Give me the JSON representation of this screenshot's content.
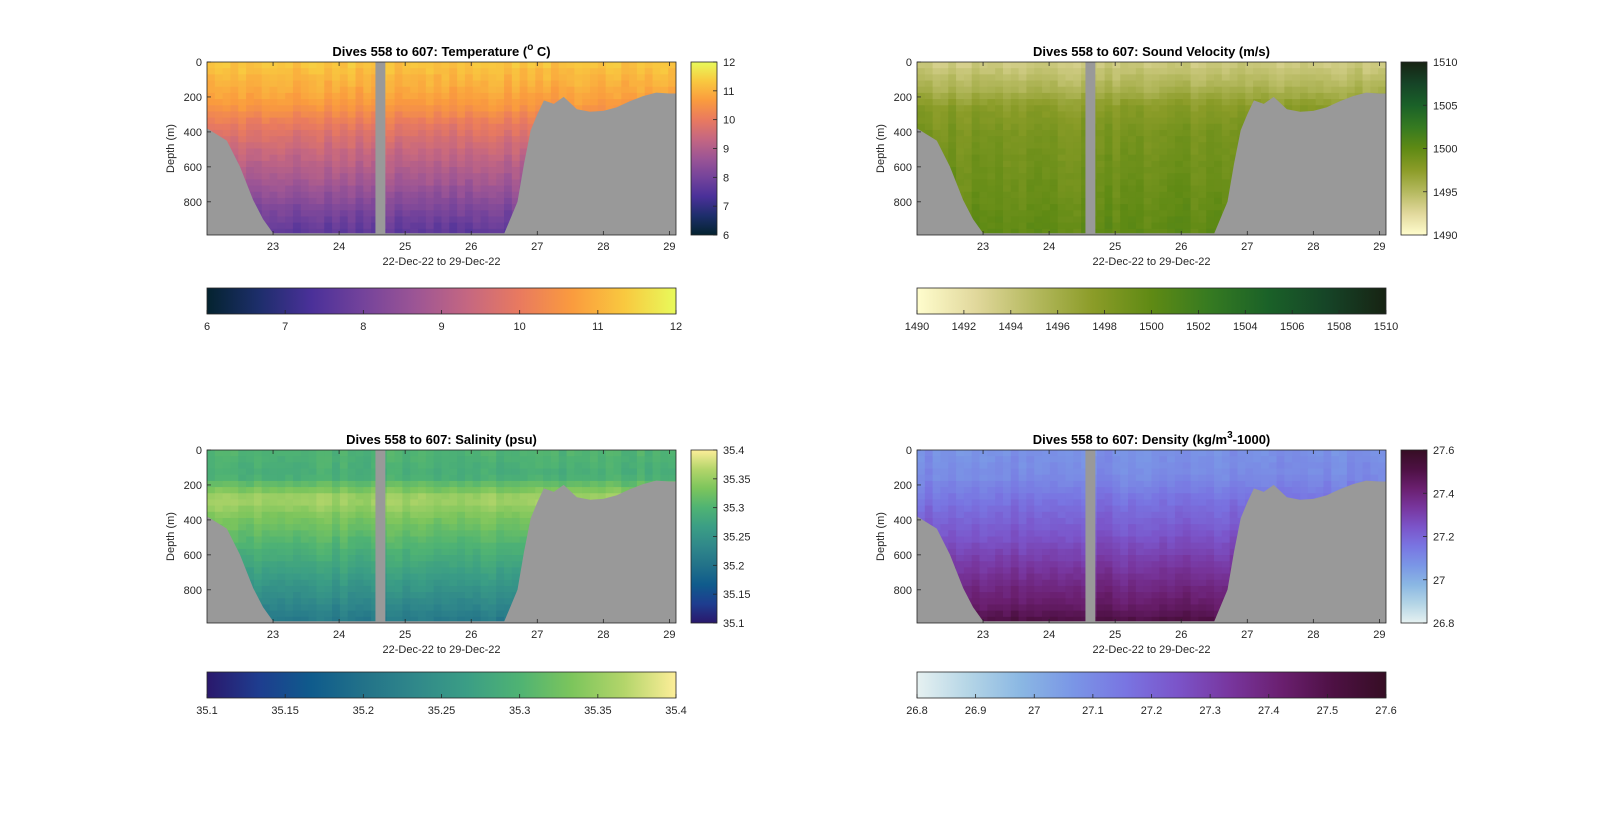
{
  "chart_data": [
    {
      "type": "heatmap",
      "title": "Dives 558 to 607: Temperature (",
      "title_sup": "o",
      "title_end": " C)",
      "xlabel": "22-Dec-22 to 29-Dec-22",
      "ylabel": "Depth (m)",
      "x_ticks": [
        23,
        24,
        25,
        26,
        27,
        28,
        29
      ],
      "y_ticks": [
        0,
        200,
        400,
        600,
        800
      ],
      "xlim": [
        22,
        29.1
      ],
      "ylim": [
        0,
        990
      ],
      "colormap": "thermal",
      "clim": [
        6,
        12
      ],
      "colorbar_ticks": [
        6,
        7,
        8,
        9,
        10,
        11,
        12
      ],
      "horizontal_colorbar_ticks": [
        6,
        7,
        8,
        9,
        10,
        11,
        12
      ],
      "profile": {
        "depth": [
          0,
          150,
          250,
          350,
          500,
          700,
          900,
          990
        ],
        "values": [
          11.3,
          10.9,
          10.6,
          10.0,
          9.4,
          8.7,
          7.9,
          7.6
        ]
      },
      "no_data_color": "#999999"
    },
    {
      "type": "heatmap",
      "title": "Dives 558 to 607: Sound Velocity (m/s)",
      "xlabel": "22-Dec-22 to 29-Dec-22",
      "ylabel": "Depth (m)",
      "x_ticks": [
        23,
        24,
        25,
        26,
        27,
        28,
        29
      ],
      "y_ticks": [
        0,
        200,
        400,
        600,
        800
      ],
      "xlim": [
        22,
        29.1
      ],
      "ylim": [
        0,
        990
      ],
      "colormap": "speed",
      "clim": [
        1490,
        1510
      ],
      "colorbar_ticks": [
        1490,
        1495,
        1500,
        1505,
        1510
      ],
      "horizontal_colorbar_ticks": [
        1490,
        1492,
        1494,
        1496,
        1498,
        1500,
        1502,
        1504,
        1506,
        1508,
        1510
      ],
      "profile": {
        "depth": [
          0,
          150,
          250,
          400,
          600,
          800,
          990
        ],
        "values": [
          1493.5,
          1495.5,
          1497.5,
          1498.5,
          1499.0,
          1499.5,
          1500.0
        ]
      },
      "no_data_color": "#999999"
    },
    {
      "type": "heatmap",
      "title": "Dives 558 to 607: Salinity (psu)",
      "xlabel": "22-Dec-22 to 29-Dec-22",
      "ylabel": "Depth (m)",
      "x_ticks": [
        23,
        24,
        25,
        26,
        27,
        28,
        29
      ],
      "y_ticks": [
        0,
        200,
        400,
        600,
        800
      ],
      "xlim": [
        22,
        29.1
      ],
      "ylim": [
        0,
        990
      ],
      "colormap": "haline",
      "clim": [
        35.1,
        35.4
      ],
      "colorbar_ticks": [
        35.1,
        35.15,
        35.2,
        35.25,
        35.3,
        35.35,
        35.4
      ],
      "horizontal_colorbar_ticks": [
        35.1,
        35.15,
        35.2,
        35.25,
        35.3,
        35.35,
        35.4
      ],
      "profile": {
        "depth": [
          0,
          150,
          280,
          400,
          600,
          800,
          990
        ],
        "values": [
          35.3,
          35.29,
          35.36,
          35.33,
          35.29,
          35.25,
          35.21
        ]
      },
      "no_data_color": "#999999"
    },
    {
      "type": "heatmap",
      "title": "Dives 558 to 607: Density (kg/m",
      "title_sup": "3",
      "title_end": "-1000)",
      "xlabel": "22-Dec-22 to 29-Dec-22",
      "ylabel": "Depth (m)",
      "x_ticks": [
        23,
        24,
        25,
        26,
        27,
        28,
        29
      ],
      "y_ticks": [
        0,
        200,
        400,
        600,
        800
      ],
      "xlim": [
        22,
        29.1
      ],
      "ylim": [
        0,
        990
      ],
      "colormap": "dense",
      "clim": [
        26.8,
        27.6
      ],
      "colorbar_ticks": [
        26.8,
        27,
        27.2,
        27.4,
        27.6
      ],
      "horizontal_colorbar_ticks": [
        26.8,
        26.9,
        27,
        27.1,
        27.2,
        27.3,
        27.4,
        27.5,
        27.6
      ],
      "profile": {
        "depth": [
          0,
          150,
          300,
          500,
          700,
          900,
          990
        ],
        "values": [
          27.08,
          27.1,
          27.17,
          27.25,
          27.35,
          27.45,
          27.52
        ]
      },
      "no_data_color": "#999999"
    }
  ],
  "bathymetry": {
    "x": [
      22.0,
      22.3,
      22.5,
      22.7,
      22.85,
      23.0,
      23.5,
      24.0,
      24.5,
      25.0,
      25.5,
      26.0,
      26.5,
      26.7,
      26.8,
      26.9,
      27.0,
      27.1,
      27.25,
      27.4,
      27.6,
      27.8,
      28.0,
      28.2,
      28.4,
      28.6,
      28.8,
      29.0,
      29.1
    ],
    "depth": [
      380,
      450,
      600,
      790,
      900,
      980,
      980,
      980,
      980,
      980,
      980,
      980,
      980,
      800,
      580,
      390,
      300,
      220,
      240,
      200,
      270,
      285,
      280,
      260,
      225,
      195,
      175,
      180,
      180
    ]
  },
  "gap": {
    "x": [
      24.55,
      24.7
    ]
  },
  "colormaps": {
    "thermal": [
      "#04232f",
      "#1d2e6b",
      "#4a3099",
      "#74439b",
      "#9c5595",
      "#c56781",
      "#e97a5f",
      "#fa9b3e",
      "#f9c83f",
      "#e8fa5b"
    ],
    "speed": [
      "#fffdcd",
      "#e1d89c",
      "#b5b95f",
      "#8b9c28",
      "#5f8a14",
      "#357a21",
      "#1a6128",
      "#164427",
      "#172313"
    ],
    "haline": [
      "#2a186c",
      "#1e3d8f",
      "#0f5b8c",
      "#227289",
      "#30888a",
      "#3b9e85",
      "#4fb373",
      "#7cc55c",
      "#b3d56a",
      "#fdee99"
    ],
    "dense": [
      "#e6f1f1",
      "#b4d5e6",
      "#8ab7e3",
      "#7a96e6",
      "#7975e2",
      "#7b54c9",
      "#78369e",
      "#6a1f6f",
      "#4d1043",
      "#360e24"
    ]
  }
}
